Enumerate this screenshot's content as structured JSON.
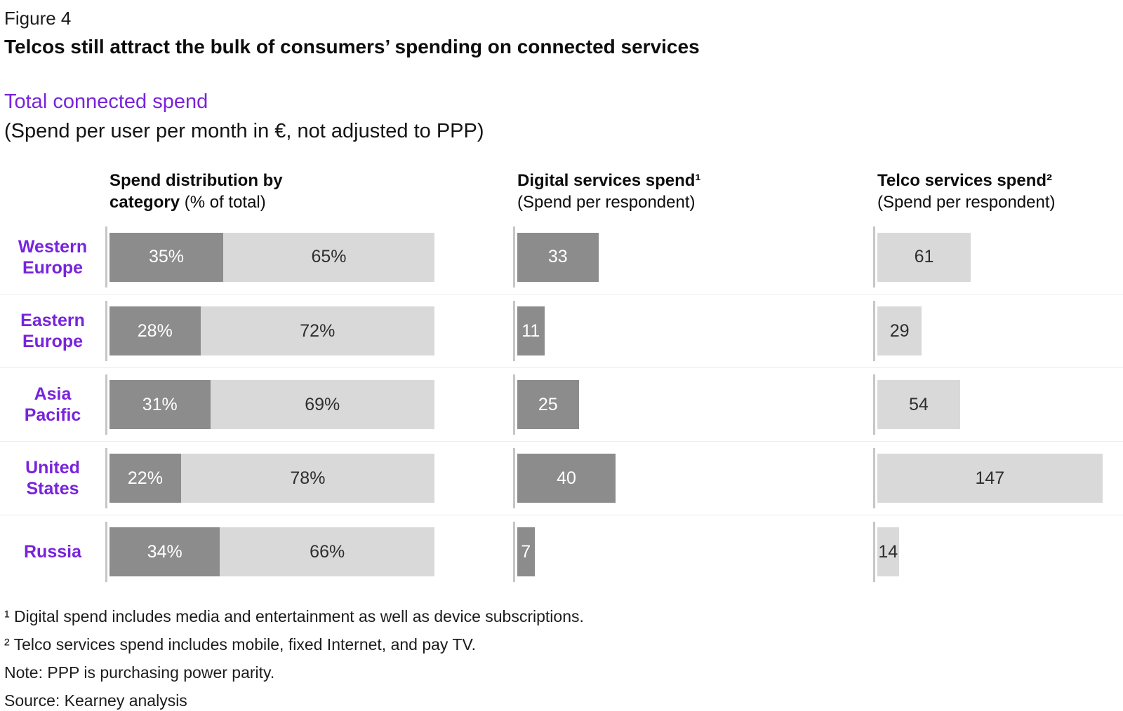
{
  "figure": {
    "eyebrow": "Figure 4",
    "title": "Telcos still attract the bulk of consumers’ spending on connected services",
    "subtitle": "Total connected spend",
    "subtitle_note": "(Spend per user per month in €, not adjusted to PPP)"
  },
  "colors": {
    "accent_purple": "#7823dc",
    "bar_dark_gray": "#8c8c8c",
    "bar_light_gray": "#d9d9d9",
    "text_dark": "#111111"
  },
  "chart_data": {
    "type": "bar",
    "orientation": "horizontal",
    "title": "Total connected spend",
    "subtitle": "(Spend per user per month in €, not adjusted to PPP)",
    "categories": [
      "Western Europe",
      "Eastern Europe",
      "Asia Pacific",
      "United States",
      "Russia"
    ],
    "panels": [
      {
        "header_bold": "Spend distribution by category",
        "header_note": "(% of total)",
        "kind": "stacked-percent",
        "axis_range": [
          0,
          100
        ],
        "grid": false,
        "series": [
          {
            "name": "Digital services share",
            "color": "#8c8c8c",
            "unit": "%",
            "values": [
              35,
              28,
              31,
              22,
              34
            ]
          },
          {
            "name": "Telco services share",
            "color": "#d9d9d9",
            "unit": "%",
            "values": [
              65,
              72,
              69,
              78,
              66
            ]
          }
        ]
      },
      {
        "header_bold": "Digital services spend¹",
        "header_note": "(Spend per respondent)",
        "kind": "bar",
        "color": "#8c8c8c",
        "unit": "€ per respondent",
        "values": [
          33,
          11,
          25,
          40,
          7
        ],
        "axis_range": [
          0,
          144
        ],
        "grid": false
      },
      {
        "header_bold": "Telco services spend²",
        "header_note": "(Spend per respondent)",
        "kind": "bar",
        "color": "#d9d9d9",
        "unit": "€ per respondent",
        "values": [
          61,
          29,
          54,
          147,
          14
        ],
        "axis_range": [
          0,
          160
        ],
        "grid": false
      }
    ]
  },
  "footnotes": [
    "¹ Digital spend includes media and entertainment as well as device subscriptions.",
    "² Telco services spend includes mobile, fixed Internet, and pay TV.",
    "Note: PPP is purchasing power parity.",
    "Source: Kearney analysis"
  ]
}
